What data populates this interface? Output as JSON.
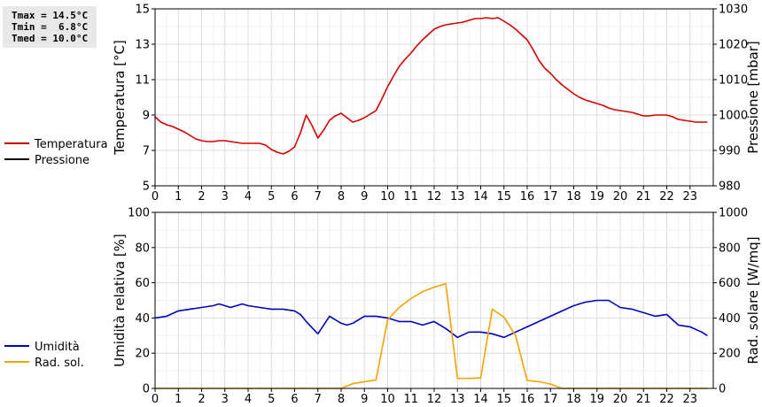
{
  "stats": {
    "tmax": "Tmax = 14.5°C",
    "tmin": "Tmin =  6.8°C",
    "tmed": "Tmed = 10.0°C"
  },
  "chart_data": [
    {
      "type": "line",
      "title": "",
      "xlabel": "",
      "ylabel": "Temperatura [°C]",
      "ylabel_right": "Pressione [mbar]",
      "xlim": [
        0,
        24
      ],
      "ylim": [
        5,
        15
      ],
      "ylim_right": [
        980,
        1030
      ],
      "xticks": [
        0,
        1,
        2,
        3,
        4,
        5,
        6,
        7,
        8,
        9,
        10,
        11,
        12,
        13,
        14,
        15,
        16,
        17,
        18,
        19,
        20,
        21,
        22,
        23
      ],
      "yticks": [
        5,
        7,
        9,
        11,
        13,
        15
      ],
      "yticks_right": [
        980,
        990,
        1000,
        1010,
        1020,
        1030
      ],
      "grid": true,
      "legend_placement": "left",
      "series": [
        {
          "name": "Temperatura",
          "color": "#d40000",
          "axis": "left",
          "x": [
            0,
            0.25,
            0.5,
            0.75,
            1,
            1.25,
            1.5,
            1.75,
            2,
            2.25,
            2.5,
            2.75,
            3,
            3.25,
            3.5,
            3.75,
            4,
            4.25,
            4.5,
            4.75,
            5,
            5.25,
            5.5,
            5.75,
            6,
            6.25,
            6.5,
            6.75,
            7,
            7.25,
            7.5,
            7.75,
            8,
            8.25,
            8.5,
            8.75,
            9,
            9.25,
            9.5,
            9.75,
            10,
            10.25,
            10.5,
            10.75,
            11,
            11.25,
            11.5,
            11.75,
            12,
            12.25,
            12.5,
            12.75,
            13,
            13.25,
            13.5,
            13.75,
            14,
            14.25,
            14.5,
            14.75,
            15,
            15.25,
            15.5,
            15.75,
            16,
            16.25,
            16.5,
            16.75,
            17,
            17.25,
            17.5,
            17.75,
            18,
            18.25,
            18.5,
            18.75,
            19,
            19.25,
            19.5,
            19.75,
            20,
            20.25,
            20.5,
            20.75,
            21,
            21.25,
            21.5,
            21.75,
            22,
            22.25,
            22.5,
            22.75,
            23,
            23.25,
            23.5,
            23.75
          ],
          "values": [
            8.9,
            8.6,
            8.45,
            8.35,
            8.2,
            8.05,
            7.85,
            7.65,
            7.55,
            7.5,
            7.5,
            7.55,
            7.55,
            7.5,
            7.45,
            7.4,
            7.4,
            7.4,
            7.4,
            7.3,
            7.05,
            6.9,
            6.8,
            6.95,
            7.2,
            8.0,
            9.0,
            8.4,
            7.7,
            8.15,
            8.7,
            8.95,
            9.1,
            8.85,
            8.6,
            8.7,
            8.85,
            9.05,
            9.25,
            9.9,
            10.6,
            11.2,
            11.75,
            12.15,
            12.5,
            12.9,
            13.25,
            13.55,
            13.85,
            14.0,
            14.1,
            14.15,
            14.2,
            14.25,
            14.35,
            14.45,
            14.45,
            14.5,
            14.45,
            14.5,
            14.3,
            14.1,
            13.85,
            13.55,
            13.25,
            12.7,
            12.1,
            11.65,
            11.35,
            11.0,
            10.7,
            10.45,
            10.2,
            10.0,
            9.85,
            9.75,
            9.65,
            9.55,
            9.4,
            9.3,
            9.25,
            9.2,
            9.15,
            9.05,
            8.95,
            8.95,
            9.0,
            9.0,
            9.0,
            8.9,
            8.75,
            8.7,
            8.65,
            8.6,
            8.6,
            8.6
          ]
        },
        {
          "name": "Pressione",
          "color": "#000000",
          "axis": "right",
          "x": [],
          "values": []
        }
      ]
    },
    {
      "type": "line",
      "title": "",
      "xlabel": "",
      "ylabel": "Umidità relativa [%]",
      "ylabel_right": "Rad. solare [W/mq]",
      "xlim": [
        0,
        24
      ],
      "ylim": [
        0,
        100
      ],
      "ylim_right": [
        0,
        1000
      ],
      "xticks": [
        0,
        1,
        2,
        3,
        4,
        5,
        6,
        7,
        8,
        9,
        10,
        11,
        12,
        13,
        14,
        15,
        16,
        17,
        18,
        19,
        20,
        21,
        22,
        23
      ],
      "yticks": [
        0,
        20,
        40,
        60,
        80,
        100
      ],
      "yticks_right": [
        0,
        200,
        400,
        600,
        800,
        1000
      ],
      "grid": true,
      "legend_placement": "left",
      "series": [
        {
          "name": "Umidità",
          "color": "#0000c0",
          "axis": "left",
          "x": [
            0,
            0.5,
            1,
            1.5,
            2,
            2.5,
            2.75,
            3,
            3.25,
            3.5,
            3.75,
            4,
            4.5,
            5,
            5.5,
            6,
            6.25,
            6.5,
            7,
            7.5,
            8,
            8.25,
            8.5,
            9,
            9.5,
            10,
            10.5,
            11,
            11.5,
            12,
            12.5,
            13,
            13.5,
            14,
            14.5,
            15,
            15.5,
            16,
            16.5,
            17,
            17.5,
            18,
            18.5,
            19,
            19.5,
            20,
            20.5,
            20.75,
            21,
            21.5,
            22,
            22.5,
            23,
            23.5,
            23.75
          ],
          "values": [
            40,
            41,
            44,
            45,
            46,
            47,
            48,
            47,
            46,
            47,
            48,
            47,
            46,
            45,
            45,
            44,
            42,
            38,
            31,
            41,
            37,
            36,
            37,
            41,
            41,
            40,
            38,
            38,
            36,
            38,
            34,
            29,
            32,
            32,
            31,
            29,
            32,
            35,
            38,
            41,
            44,
            47,
            49,
            50,
            50,
            46,
            45,
            44,
            43,
            41,
            42,
            36,
            35,
            32,
            30
          ]
        },
        {
          "name": "Rad. sol.",
          "color": "#f5a300",
          "axis": "right",
          "x": [
            0,
            8,
            8.5,
            9,
            9.5,
            10,
            10.5,
            11,
            11.5,
            12,
            12.5,
            13,
            13.5,
            14,
            14.5,
            15,
            15.5,
            16,
            16.5,
            17,
            17.5,
            18,
            19,
            20,
            21,
            22,
            23,
            23.75
          ],
          "values": [
            0,
            0,
            27,
            38,
            48,
            390,
            460,
            510,
            550,
            575,
            595,
            57,
            57,
            60,
            450,
            405,
            300,
            45,
            38,
            25,
            0,
            0,
            0,
            0,
            0,
            0,
            0,
            0
          ]
        }
      ]
    }
  ]
}
